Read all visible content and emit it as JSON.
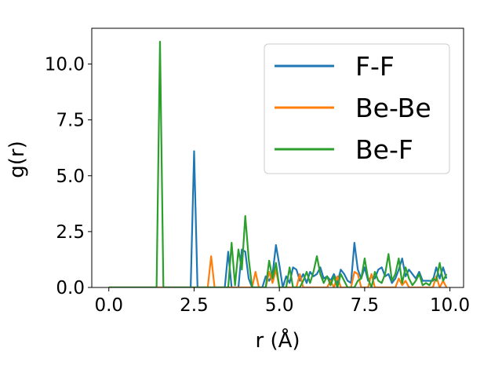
{
  "chart_data": {
    "type": "line",
    "xlabel": "r (Å)",
    "ylabel": "g(r)",
    "xlim": [
      -0.5,
      10.4
    ],
    "ylim": [
      0,
      11.6
    ],
    "x_ticks": [
      0.0,
      2.5,
      5.0,
      7.5,
      10.0
    ],
    "x_tick_labels": [
      "0.0",
      "2.5",
      "5.0",
      "7.5",
      "10.0"
    ],
    "y_ticks": [
      0.0,
      2.5,
      5.0,
      7.5,
      10.0
    ],
    "y_tick_labels": [
      "0.0",
      "2.5",
      "5.0",
      "7.5",
      "10.0"
    ],
    "grid": false,
    "legend_position": "top-right",
    "series": [
      {
        "name": "F-F",
        "color": "#1f77b4",
        "points": [
          [
            0.0,
            0.0
          ],
          [
            1.0,
            0.0
          ],
          [
            2.4,
            0.0
          ],
          [
            2.5,
            6.1
          ],
          [
            2.6,
            0.0
          ],
          [
            3.4,
            0.0
          ],
          [
            3.5,
            1.6
          ],
          [
            3.6,
            0.0
          ],
          [
            3.8,
            0.0
          ],
          [
            3.9,
            1.7
          ],
          [
            4.0,
            1.6
          ],
          [
            4.1,
            0.4
          ],
          [
            4.2,
            0.0
          ],
          [
            4.5,
            0.0
          ],
          [
            4.6,
            0.5
          ],
          [
            4.7,
            0.3
          ],
          [
            4.8,
            0.6
          ],
          [
            4.9,
            1.9
          ],
          [
            5.0,
            1.0
          ],
          [
            5.1,
            0.0
          ],
          [
            5.2,
            0.5
          ],
          [
            5.3,
            0.2
          ],
          [
            5.4,
            0.9
          ],
          [
            5.5,
            0.8
          ],
          [
            5.6,
            0.3
          ],
          [
            5.7,
            0.6
          ],
          [
            5.8,
            0.2
          ],
          [
            5.9,
            0.7
          ],
          [
            6.0,
            0.5
          ],
          [
            6.1,
            0.6
          ],
          [
            6.2,
            0.9
          ],
          [
            6.3,
            0.4
          ],
          [
            6.4,
            0.5
          ],
          [
            6.5,
            0.3
          ],
          [
            6.6,
            0.6
          ],
          [
            6.7,
            0.2
          ],
          [
            6.8,
            0.8
          ],
          [
            6.9,
            0.6
          ],
          [
            7.0,
            0.3
          ],
          [
            7.1,
            0.2
          ],
          [
            7.2,
            2.0
          ],
          [
            7.3,
            0.8
          ],
          [
            7.4,
            0.4
          ],
          [
            7.5,
            0.9
          ],
          [
            7.6,
            0.3
          ],
          [
            7.7,
            0.5
          ],
          [
            7.8,
            0.4
          ],
          [
            7.9,
            0.8
          ],
          [
            8.0,
            0.9
          ],
          [
            8.1,
            0.5
          ],
          [
            8.2,
            0.6
          ],
          [
            8.3,
            0.2
          ],
          [
            8.4,
            0.4
          ],
          [
            8.5,
            0.8
          ],
          [
            8.6,
            1.3
          ],
          [
            8.7,
            0.5
          ],
          [
            8.8,
            0.8
          ],
          [
            8.9,
            0.6
          ],
          [
            9.0,
            0.4
          ],
          [
            9.1,
            0.7
          ],
          [
            9.2,
            0.3
          ],
          [
            9.3,
            0.3
          ],
          [
            9.4,
            0.3
          ],
          [
            9.5,
            0.3
          ],
          [
            9.6,
            0.9
          ],
          [
            9.7,
            0.4
          ],
          [
            9.8,
            0.9
          ],
          [
            9.9,
            0.4
          ]
        ]
      },
      {
        "name": "Be-Be",
        "color": "#ff7f0e",
        "points": [
          [
            0.0,
            0.0
          ],
          [
            2.9,
            0.0
          ],
          [
            3.0,
            1.4
          ],
          [
            3.1,
            0.0
          ],
          [
            4.2,
            0.0
          ],
          [
            4.3,
            0.7
          ],
          [
            4.4,
            0.0
          ],
          [
            4.6,
            0.0
          ],
          [
            4.7,
            0.7
          ],
          [
            4.8,
            0.2
          ],
          [
            4.9,
            0.8
          ],
          [
            5.0,
            0.0
          ],
          [
            5.5,
            0.0
          ],
          [
            5.6,
            0.6
          ],
          [
            5.7,
            0.0
          ],
          [
            6.4,
            0.0
          ],
          [
            6.5,
            0.3
          ],
          [
            6.6,
            0.0
          ],
          [
            6.7,
            0.5
          ],
          [
            6.8,
            0.0
          ],
          [
            7.1,
            0.0
          ],
          [
            7.2,
            0.7
          ],
          [
            7.3,
            0.6
          ],
          [
            7.4,
            0.0
          ],
          [
            7.6,
            0.0
          ],
          [
            7.7,
            0.6
          ],
          [
            7.8,
            0.0
          ],
          [
            8.4,
            0.0
          ],
          [
            8.5,
            0.4
          ],
          [
            8.6,
            0.1
          ],
          [
            8.7,
            0.3
          ],
          [
            8.8,
            0.0
          ],
          [
            9.5,
            0.0
          ],
          [
            9.6,
            0.5
          ],
          [
            9.7,
            0.0
          ],
          [
            9.8,
            0.3
          ],
          [
            9.9,
            0.0
          ]
        ]
      },
      {
        "name": "Be-F",
        "color": "#2ca02c",
        "points": [
          [
            0.0,
            0.0
          ],
          [
            1.0,
            0.0
          ],
          [
            1.4,
            0.0
          ],
          [
            1.5,
            11.0
          ],
          [
            1.6,
            0.0
          ],
          [
            3.5,
            0.0
          ],
          [
            3.6,
            2.0
          ],
          [
            3.7,
            0.1
          ],
          [
            3.8,
            1.7
          ],
          [
            3.9,
            0.8
          ],
          [
            4.0,
            3.2
          ],
          [
            4.1,
            1.3
          ],
          [
            4.2,
            0.0
          ],
          [
            4.6,
            0.0
          ],
          [
            4.7,
            1.2
          ],
          [
            4.8,
            0.4
          ],
          [
            4.9,
            1.1
          ],
          [
            5.0,
            0.0
          ],
          [
            5.2,
            0.0
          ],
          [
            5.3,
            0.9
          ],
          [
            5.4,
            0.0
          ],
          [
            5.6,
            0.0
          ],
          [
            5.7,
            0.3
          ],
          [
            5.8,
            0.7
          ],
          [
            5.9,
            0.2
          ],
          [
            6.0,
            0.7
          ],
          [
            6.1,
            1.4
          ],
          [
            6.2,
            0.6
          ],
          [
            6.3,
            0.2
          ],
          [
            6.4,
            0.5
          ],
          [
            6.5,
            0.1
          ],
          [
            6.6,
            0.5
          ],
          [
            6.7,
            0.0
          ],
          [
            6.8,
            0.6
          ],
          [
            6.9,
            0.3
          ],
          [
            7.0,
            0.0
          ],
          [
            7.2,
            0.0
          ],
          [
            7.3,
            0.3
          ],
          [
            7.4,
            0.4
          ],
          [
            7.5,
            1.3
          ],
          [
            7.6,
            0.4
          ],
          [
            7.7,
            0.0
          ],
          [
            7.8,
            0.7
          ],
          [
            7.9,
            0.3
          ],
          [
            8.0,
            0.2
          ],
          [
            8.1,
            0.6
          ],
          [
            8.2,
            1.5
          ],
          [
            8.3,
            0.3
          ],
          [
            8.4,
            0.6
          ],
          [
            8.5,
            1.3
          ],
          [
            8.6,
            0.2
          ],
          [
            8.7,
            0.9
          ],
          [
            8.8,
            0.4
          ],
          [
            8.9,
            0.1
          ],
          [
            9.0,
            0.3
          ],
          [
            9.1,
            0.6
          ],
          [
            9.2,
            0.1
          ],
          [
            9.3,
            0.2
          ],
          [
            9.4,
            0.1
          ],
          [
            9.5,
            0.4
          ],
          [
            9.6,
            0.3
          ],
          [
            9.7,
            1.1
          ],
          [
            9.8,
            0.3
          ],
          [
            9.9,
            0.6
          ]
        ]
      }
    ]
  }
}
